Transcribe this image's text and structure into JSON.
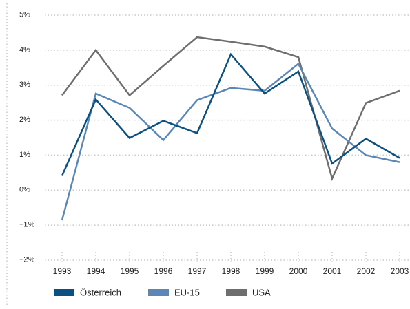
{
  "chart_data": {
    "type": "line",
    "categories": [
      "1993",
      "1994",
      "1995",
      "1996",
      "1997",
      "1998",
      "1999",
      "2000",
      "2001",
      "2002",
      "2003"
    ],
    "series": [
      {
        "name": "Österreich",
        "color": "#0b5080",
        "values": [
          0.41,
          2.59,
          1.49,
          1.98,
          1.63,
          3.88,
          2.76,
          3.39,
          0.76,
          1.47,
          0.92
        ]
      },
      {
        "name": "EU-15",
        "color": "#5b87b6",
        "values": [
          -0.86,
          2.76,
          2.35,
          1.43,
          2.57,
          2.92,
          2.84,
          3.61,
          1.76,
          1.0,
          0.8
        ]
      },
      {
        "name": "USA",
        "color": "#6e6e6e",
        "values": [
          2.71,
          4.0,
          2.71,
          3.55,
          4.37,
          4.24,
          4.1,
          3.8,
          0.33,
          2.49,
          2.84
        ]
      }
    ],
    "ylim": [
      -2,
      5
    ],
    "yticks": [
      {
        "value": -2,
        "label": "−2%"
      },
      {
        "value": -1,
        "label": "−1%"
      },
      {
        "value": 0,
        "label": "0%"
      },
      {
        "value": 1,
        "label": "1%"
      },
      {
        "value": 2,
        "label": "2%"
      },
      {
        "value": 3,
        "label": "3%"
      },
      {
        "value": 4,
        "label": "4%"
      },
      {
        "value": 5,
        "label": "5%"
      }
    ],
    "grid": true
  }
}
